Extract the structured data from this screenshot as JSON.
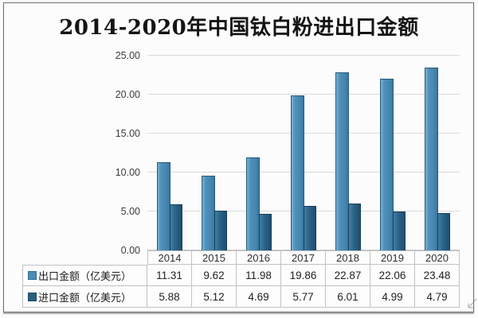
{
  "title": "2014-2020年中国钛白粉进出口金额",
  "colors": {
    "export_series": "#4a8cb5",
    "import_series": "#29617f",
    "gridline": "#dadada",
    "table_border": "#c2c2c2",
    "frame_border": "#6f6f6f",
    "background": "#fcfcfc"
  },
  "chart_data": {
    "type": "bar",
    "title": "2014-2020年中国钛白粉进出口金额",
    "categories": [
      "2014",
      "2015",
      "2016",
      "2017",
      "2018",
      "2019",
      "2020"
    ],
    "series": [
      {
        "name": "出口金额（亿美元）",
        "values": [
          11.31,
          9.62,
          11.98,
          19.86,
          22.87,
          22.06,
          23.48
        ]
      },
      {
        "name": "进口金额（亿美元）",
        "values": [
          5.88,
          5.12,
          4.69,
          5.77,
          6.01,
          4.99,
          4.79
        ]
      }
    ],
    "ylim": [
      0,
      25
    ],
    "ytick_step": 5,
    "ytick_labels": [
      "0.00",
      "5.00",
      "10.00",
      "15.00",
      "20.00",
      "25.00"
    ],
    "grid": true,
    "legend_position": "table-left",
    "data_table_shown": true
  }
}
